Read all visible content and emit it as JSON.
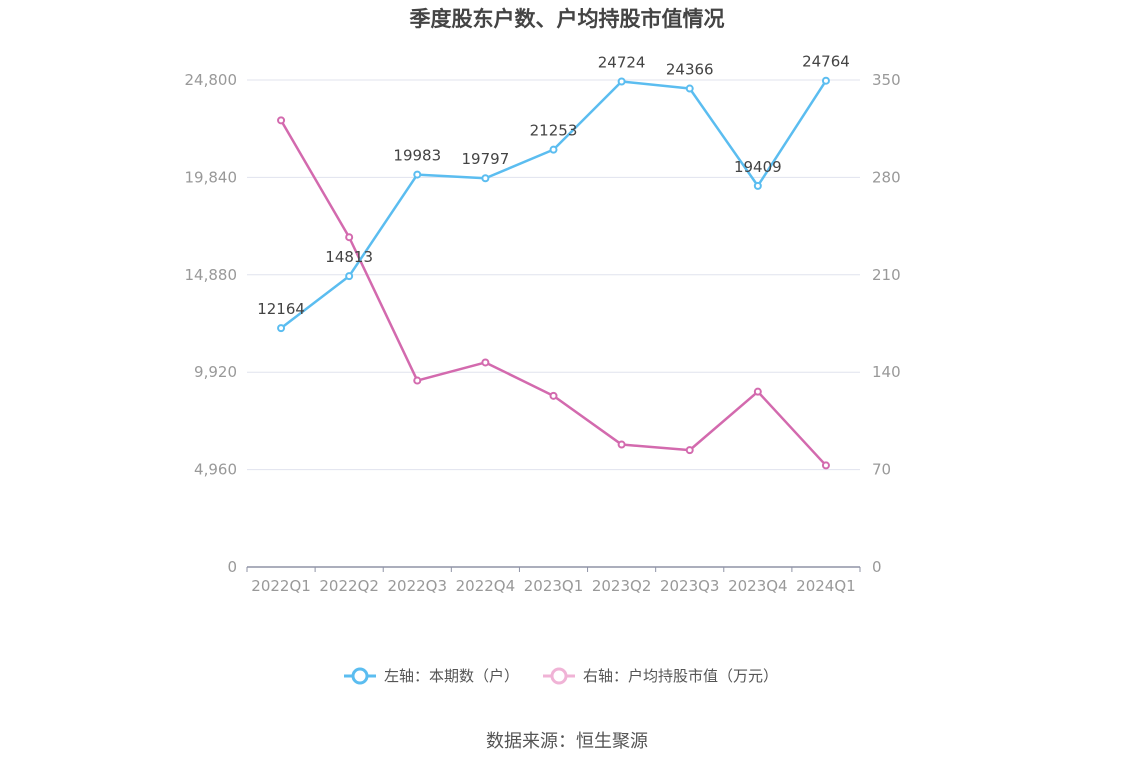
{
  "chart_data": {
    "type": "line",
    "title": "季度股东户数、户均持股市值情况",
    "categories": [
      "2022Q1",
      "2022Q2",
      "2022Q3",
      "2022Q4",
      "2023Q1",
      "2023Q2",
      "2023Q3",
      "2023Q4",
      "2024Q1"
    ],
    "series": [
      {
        "name": "左轴：本期数（户）",
        "axis": "left",
        "color": "#5bbdf0",
        "values": [
          12164,
          14813,
          19983,
          19797,
          21253,
          24724,
          24366,
          19409,
          24764
        ],
        "labels": [
          "12164",
          "14813",
          "19983",
          "19797",
          "21253",
          "24724",
          "24366",
          "19409",
          "24764"
        ]
      },
      {
        "name": "右轴：户均持股市值（万元）",
        "axis": "right",
        "color": "#d36aae",
        "values": [
          321,
          237,
          134,
          147,
          123,
          88,
          84,
          126,
          73
        ]
      }
    ],
    "left_axis": {
      "ylim": [
        0,
        24800
      ],
      "ticks": [
        "0",
        "4,960",
        "9,920",
        "14,880",
        "19,840",
        "24,800"
      ]
    },
    "right_axis": {
      "ylim": [
        0,
        350
      ],
      "ticks": [
        "0",
        "70",
        "140",
        "210",
        "280",
        "350"
      ]
    },
    "grid": true,
    "legend_position": "bottom"
  },
  "source": "数据来源：恒生聚源"
}
